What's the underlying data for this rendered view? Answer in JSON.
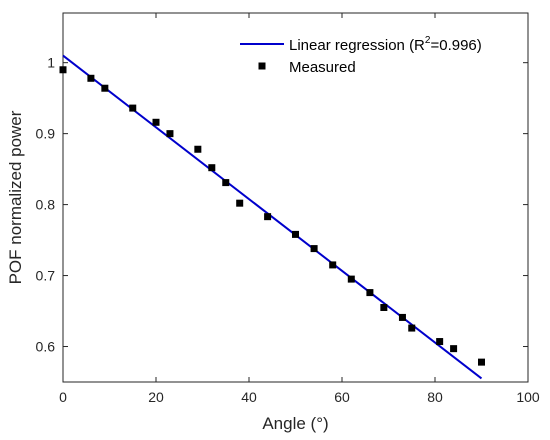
{
  "chart_data": {
    "type": "scatter",
    "xlabel": "Angle (°)",
    "ylabel": "POF normalized power",
    "xlim": [
      0,
      100
    ],
    "ylim": [
      0.55,
      1.07
    ],
    "xticks": [
      0,
      20,
      40,
      60,
      80,
      100
    ],
    "yticks": [
      0.6,
      0.7,
      0.8,
      0.9,
      1
    ],
    "grid": false,
    "legend_position": "top-right",
    "series": [
      {
        "name": "Linear regression (R2=0.996)",
        "legend_parts": {
          "pre": "Linear regression (R",
          "sup": "2",
          "post": "=0.996)"
        },
        "kind": "line",
        "color": "#0000cc",
        "x": [
          0,
          90
        ],
        "y": [
          1.01,
          0.555
        ]
      },
      {
        "name": "Measured",
        "kind": "marker",
        "color": "#000000",
        "x": [
          0,
          6,
          9,
          15,
          20,
          23,
          29,
          32,
          35,
          38,
          44,
          50,
          54,
          58,
          62,
          66,
          69,
          73,
          75,
          81,
          84,
          90
        ],
        "y": [
          0.99,
          0.978,
          0.964,
          0.936,
          0.916,
          0.9,
          0.878,
          0.852,
          0.831,
          0.802,
          0.783,
          0.758,
          0.738,
          0.715,
          0.695,
          0.676,
          0.655,
          0.641,
          0.626,
          0.607,
          0.597,
          0.578
        ]
      }
    ]
  }
}
